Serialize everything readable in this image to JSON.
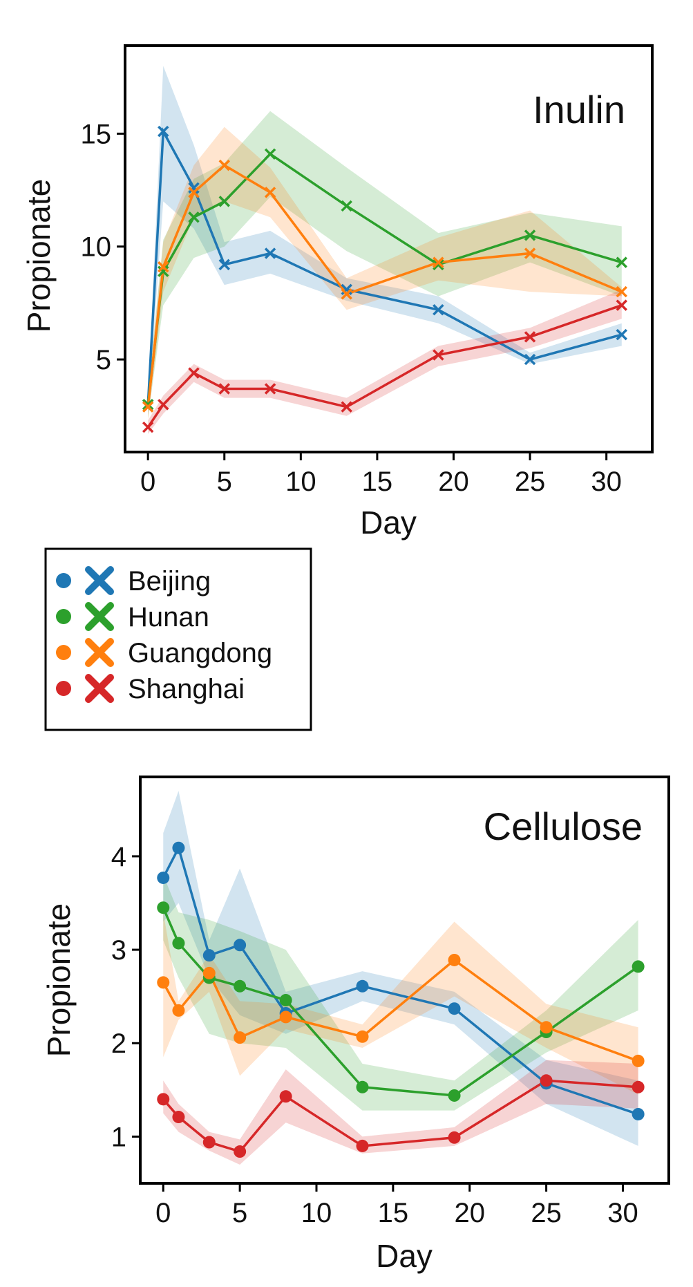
{
  "colors": {
    "Beijing": "#1f77b4",
    "Hunan": "#2ca02c",
    "Guangdong": "#ff7f0e",
    "Shanghai": "#d62728"
  },
  "legend": {
    "entries": [
      "Beijing",
      "Hunan",
      "Guangdong",
      "Shanghai"
    ],
    "markers": [
      "circle",
      "x"
    ],
    "placement": "between-panels-left"
  },
  "chart_data": [
    {
      "type": "line",
      "title": "Inulin",
      "xlabel": "Day",
      "ylabel": "Propionate",
      "marker": "x",
      "xlim": [
        -1.5,
        33
      ],
      "ylim": [
        0.9,
        18.9
      ],
      "xticks": [
        0,
        5,
        10,
        15,
        20,
        25,
        30
      ],
      "yticks": [
        5,
        10,
        15
      ],
      "grid": false,
      "series": [
        {
          "name": "Beijing",
          "x": [
            0,
            1,
            3,
            5,
            8,
            13,
            19,
            25,
            31
          ],
          "y": [
            3.0,
            15.1,
            12.6,
            9.2,
            9.7,
            8.1,
            7.2,
            5.0,
            6.1
          ],
          "lower": [
            2.6,
            12.0,
            10.8,
            8.3,
            8.8,
            7.6,
            6.6,
            4.8,
            5.6
          ],
          "upper": [
            3.4,
            18.0,
            14.5,
            10.2,
            10.7,
            8.6,
            7.8,
            5.3,
            6.6
          ]
        },
        {
          "name": "Hunan",
          "x": [
            0,
            1,
            3,
            5,
            8,
            13,
            19,
            25,
            31
          ],
          "y": [
            3.0,
            8.9,
            11.3,
            12.0,
            14.1,
            11.8,
            9.2,
            10.5,
            9.3
          ],
          "lower": [
            2.4,
            7.4,
            9.5,
            10.0,
            12.2,
            9.8,
            7.8,
            9.3,
            7.8
          ],
          "upper": [
            3.5,
            10.3,
            13.0,
            13.7,
            16.0,
            13.5,
            10.6,
            11.5,
            10.9
          ]
        },
        {
          "name": "Guangdong",
          "x": [
            0,
            1,
            3,
            5,
            8,
            13,
            19,
            25,
            31
          ],
          "y": [
            2.9,
            9.1,
            12.4,
            13.6,
            12.4,
            7.9,
            9.3,
            9.7,
            8.0
          ],
          "lower": [
            2.3,
            8.0,
            11.3,
            12.0,
            11.3,
            7.2,
            8.5,
            8.0,
            7.8
          ],
          "upper": [
            3.5,
            10.2,
            13.6,
            15.3,
            13.5,
            8.6,
            10.4,
            11.6,
            8.2
          ]
        },
        {
          "name": "Shanghai",
          "x": [
            0,
            1,
            3,
            5,
            8,
            13,
            19,
            25,
            31
          ],
          "y": [
            2.0,
            3.0,
            4.4,
            3.7,
            3.7,
            2.9,
            5.2,
            6.0,
            7.4
          ],
          "lower": [
            1.7,
            2.6,
            4.0,
            3.3,
            3.3,
            2.5,
            4.7,
            5.5,
            6.8
          ],
          "upper": [
            2.3,
            3.4,
            4.8,
            4.1,
            4.1,
            3.3,
            5.6,
            6.4,
            8.1
          ]
        }
      ]
    },
    {
      "type": "line",
      "title": "Cellulose",
      "xlabel": "Day",
      "ylabel": "Propionate",
      "marker": "circle",
      "xlim": [
        -1.5,
        33
      ],
      "ylim": [
        0.5,
        4.85
      ],
      "xticks": [
        0,
        5,
        10,
        15,
        20,
        25,
        30
      ],
      "yticks": [
        1,
        2,
        3,
        4
      ],
      "grid": false,
      "series": [
        {
          "name": "Beijing",
          "x": [
            0,
            1,
            3,
            5,
            8,
            13,
            19,
            25,
            31
          ],
          "y": [
            3.77,
            4.09,
            2.94,
            3.05,
            2.32,
            2.61,
            2.37,
            1.57,
            1.24
          ],
          "lower": [
            3.3,
            3.5,
            2.7,
            2.3,
            2.1,
            2.45,
            2.2,
            1.35,
            0.9
          ],
          "upper": [
            4.25,
            4.7,
            3.1,
            3.87,
            2.55,
            2.77,
            2.55,
            1.82,
            1.6
          ]
        },
        {
          "name": "Hunan",
          "x": [
            0,
            1,
            3,
            5,
            8,
            13,
            19,
            25,
            31
          ],
          "y": [
            3.45,
            3.07,
            2.7,
            2.61,
            2.46,
            1.53,
            1.44,
            2.12,
            2.82
          ],
          "lower": [
            3.1,
            2.7,
            2.1,
            2.0,
            1.95,
            1.28,
            1.28,
            1.9,
            2.35
          ],
          "upper": [
            3.8,
            3.4,
            3.32,
            3.2,
            3.0,
            1.78,
            1.6,
            2.35,
            3.32
          ]
        },
        {
          "name": "Guangdong",
          "x": [
            0,
            1,
            3,
            5,
            8,
            13,
            19,
            25,
            31
          ],
          "y": [
            2.65,
            2.35,
            2.75,
            2.06,
            2.28,
            2.07,
            2.89,
            2.17,
            1.81
          ],
          "lower": [
            1.85,
            2.25,
            2.55,
            1.65,
            2.15,
            1.95,
            2.5,
            1.95,
            1.45
          ],
          "upper": [
            3.4,
            2.45,
            2.95,
            2.45,
            2.42,
            2.2,
            3.3,
            2.42,
            2.17
          ]
        },
        {
          "name": "Shanghai",
          "x": [
            0,
            1,
            3,
            5,
            8,
            13,
            19,
            25,
            31
          ],
          "y": [
            1.4,
            1.21,
            0.94,
            0.84,
            1.43,
            0.9,
            0.99,
            1.6,
            1.53
          ],
          "lower": [
            1.25,
            1.05,
            0.85,
            0.7,
            1.15,
            0.82,
            0.9,
            1.35,
            1.3
          ],
          "upper": [
            1.6,
            1.35,
            1.05,
            0.97,
            1.72,
            1.0,
            1.1,
            1.82,
            1.78
          ]
        }
      ]
    }
  ]
}
